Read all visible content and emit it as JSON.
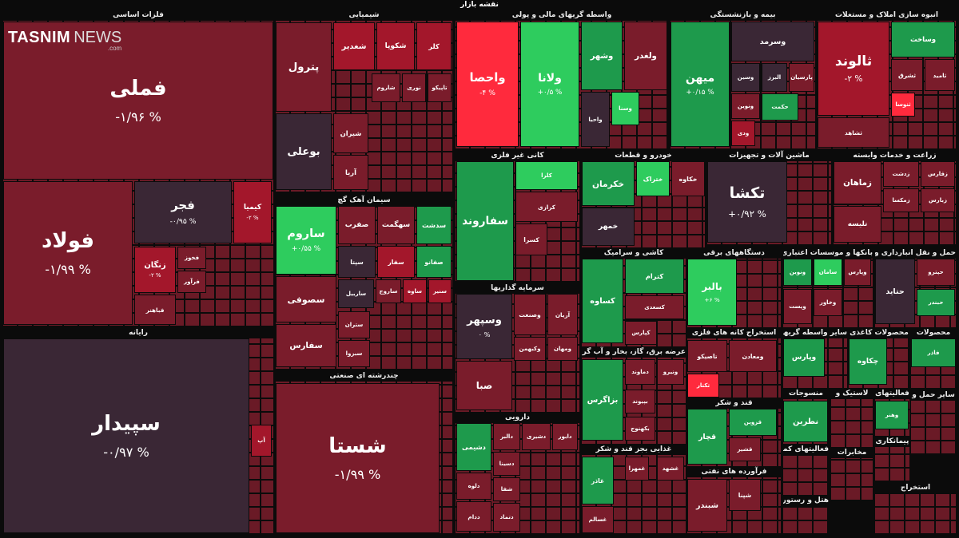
{
  "title": "نقشه بازار",
  "logo": {
    "brand": "TASNIM",
    "suffix": "NEWS",
    "domain": ".com"
  },
  "sectors": [
    {
      "name": "فلزات اساسی",
      "tiles": [
        {
          "label": "فملی",
          "change": "-۱/۹۶ %",
          "color": "#7a1c2b"
        },
        {
          "label": "فولاد",
          "change": "-۱/۹۹ %",
          "color": "#7a1c2b"
        },
        {
          "label": "فجر",
          "change": "-۰/۹۵ %",
          "color": "#3a2735"
        },
        {
          "label": "کیمیا",
          "change": "-۲ %",
          "color": "#a3172b"
        },
        {
          "label": "زنگان",
          "change": "-۲ %",
          "color": "#a3172b"
        },
        {
          "label": "فخوز",
          "color": "#7a1c2b"
        },
        {
          "label": "فرآور",
          "color": "#7a1c2b"
        },
        {
          "label": "فباهنر",
          "color": "#7a1c2b"
        }
      ]
    },
    {
      "name": "رایانه",
      "tiles": [
        {
          "label": "سپیدار",
          "change": "-۰/۹۷ %",
          "color": "#3a2735"
        },
        {
          "label": "آپ",
          "color": "#a3172b"
        }
      ]
    },
    {
      "name": "شیمیایی",
      "tiles": [
        {
          "label": "پترول",
          "color": "#7a1c2b"
        },
        {
          "label": "شغدیر",
          "color": "#a3172b"
        },
        {
          "label": "شکوپا",
          "color": "#a3172b"
        },
        {
          "label": "کلر",
          "color": "#a3172b"
        },
        {
          "label": "شاروم",
          "color": "#7a1c2b"
        },
        {
          "label": "نوری",
          "color": "#7a1c2b"
        },
        {
          "label": "تاپیکو",
          "color": "#7a1c2b"
        },
        {
          "label": "بوعلی",
          "color": "#3a2735"
        },
        {
          "label": "شیران",
          "color": "#7a1c2b"
        },
        {
          "label": "آریا",
          "color": "#7a1c2b"
        }
      ]
    },
    {
      "name": "سیمان آهک گچ",
      "tiles": [
        {
          "label": "ساروم",
          "change": "+۰/۵۵ %",
          "color": "#2ecc5e"
        },
        {
          "label": "صفرب",
          "color": "#7a1c2b"
        },
        {
          "label": "سهگمت",
          "color": "#7a1c2b"
        },
        {
          "label": "سدشت",
          "color": "#1e9a4c"
        },
        {
          "label": "سپتا",
          "color": "#3a2735"
        },
        {
          "label": "سفار",
          "color": "#a3172b"
        },
        {
          "label": "صفانو",
          "color": "#1e9a4c"
        },
        {
          "label": "سصوفی",
          "color": "#7a1c2b"
        },
        {
          "label": "سفارس",
          "color": "#7a1c2b"
        },
        {
          "label": "ساربیل",
          "color": "#3a2735"
        },
        {
          "label": "ساروج",
          "color": "#7a1c2b"
        },
        {
          "label": "ساوه",
          "color": "#a3172b"
        },
        {
          "label": "سنیر",
          "color": "#a3172b"
        },
        {
          "label": "ستران",
          "color": "#7a1c2b"
        },
        {
          "label": "سبزوا",
          "color": "#7a1c2b"
        }
      ]
    },
    {
      "name": "چندرشته ای صنعتی",
      "tiles": [
        {
          "label": "شستا",
          "change": "-۱/۹۹ %",
          "color": "#7a1c2b"
        }
      ]
    },
    {
      "name": "واسطه گریهای مالی و پولی",
      "tiles": [
        {
          "label": "واحصا",
          "change": "-۴ %",
          "color": "#ff2a3d"
        },
        {
          "label": "ولانا",
          "change": "+۰/۵ %",
          "color": "#2ecc5e"
        },
        {
          "label": "وشهر",
          "color": "#1e9a4c"
        },
        {
          "label": "ولغدر",
          "color": "#7a1c2b"
        },
        {
          "label": "واحیا",
          "color": "#3a2735"
        },
        {
          "label": "وسنا",
          "color": "#2ecc5e"
        }
      ]
    },
    {
      "name": "بیمه و بازنشستگی",
      "tiles": [
        {
          "label": "میهن",
          "change": "+۰/۱۵ %",
          "color": "#1e9a4c"
        },
        {
          "label": "وسرمد",
          "color": "#3a2735"
        },
        {
          "label": "وسین",
          "color": "#3a2735"
        },
        {
          "label": "البرز",
          "color": "#3a2735"
        },
        {
          "label": "پارسیان",
          "color": "#7a1c2b"
        },
        {
          "label": "ونوین",
          "color": "#7a1c2b"
        },
        {
          "label": "حکمت",
          "color": "#1e9a4c"
        },
        {
          "label": "ودی",
          "color": "#a3172b"
        }
      ]
    },
    {
      "name": "انبوه سازی املاک و مستغلات",
      "tiles": [
        {
          "label": "ثالوند",
          "change": "-۲ %",
          "color": "#a3172b"
        },
        {
          "label": "وساخت",
          "color": "#1e9a4c"
        },
        {
          "label": "ثشرق",
          "color": "#7a1c2b"
        },
        {
          "label": "ثامید",
          "color": "#7a1c2b"
        },
        {
          "label": "ثنوسا",
          "color": "#ff2a3d"
        },
        {
          "label": "ثشاهد",
          "color": "#7a1c2b"
        }
      ]
    },
    {
      "name": "کانی غیر فلزی",
      "tiles": [
        {
          "label": "سفاروند",
          "color": "#1e9a4c"
        },
        {
          "label": "کلرا",
          "color": "#2ecc5e"
        },
        {
          "label": "کرازی",
          "color": "#7a1c2b"
        },
        {
          "label": "کسرا",
          "color": "#7a1c2b"
        }
      ]
    },
    {
      "name": "خودرو و قطعات",
      "tiles": [
        {
          "label": "خکرمان",
          "color": "#1e9a4c"
        },
        {
          "label": "ختراک",
          "color": "#2ecc5e"
        },
        {
          "label": "خکاوه",
          "color": "#7a1c2b"
        },
        {
          "label": "خمهر",
          "color": "#3a2735"
        }
      ]
    },
    {
      "name": "ماشین آلات و تجهیزات",
      "tiles": [
        {
          "label": "تکشا",
          "change": "+۰/۹۲ %",
          "color": "#3a2735"
        }
      ]
    },
    {
      "name": "زراعت و خدمات وابسته",
      "tiles": [
        {
          "label": "زماهان",
          "color": "#7a1c2b"
        },
        {
          "label": "زدشت",
          "color": "#7a1c2b"
        },
        {
          "label": "زقارس",
          "color": "#7a1c2b"
        },
        {
          "label": "زمکسا",
          "color": "#7a1c2b"
        },
        {
          "label": "زبارس",
          "color": "#7a1c2b"
        },
        {
          "label": "تلیسه",
          "color": "#7a1c2b"
        }
      ]
    },
    {
      "name": "کاشی و سرامیک",
      "tiles": [
        {
          "label": "کساوه",
          "color": "#1e9a4c"
        },
        {
          "label": "کترام",
          "color": "#1e9a4c"
        },
        {
          "label": "کسعدی",
          "color": "#7a1c2b"
        },
        {
          "label": "کپارس",
          "color": "#7a1c2b"
        }
      ]
    },
    {
      "name": "دستگاههای برقی",
      "tiles": [
        {
          "label": "بالبر",
          "change": "+۶ %",
          "color": "#2ecc5e"
        }
      ]
    },
    {
      "name": "بانکها و موسسات اعتباری",
      "tiles": [
        {
          "label": "ونوین",
          "color": "#1e9a4c"
        },
        {
          "label": "سامان",
          "color": "#2ecc5e"
        },
        {
          "label": "وپارس",
          "color": "#7a1c2b"
        },
        {
          "label": "وپست",
          "color": "#7a1c2b"
        },
        {
          "label": "وخاور",
          "color": "#7a1c2b"
        }
      ]
    },
    {
      "name": "حمل و نقل انبارداری و ارتباطات",
      "tiles": [
        {
          "label": "حتاید",
          "color": "#3a2735"
        },
        {
          "label": "حپترو",
          "color": "#7a1c2b"
        },
        {
          "label": "حبندر",
          "color": "#1e9a4c"
        }
      ]
    },
    {
      "name": "سرمایه گذاریها",
      "tiles": [
        {
          "label": "وسپهر",
          "change": "۰ %",
          "color": "#3a2735"
        },
        {
          "label": "وصنعت",
          "color": "#7a1c2b"
        },
        {
          "label": "آریان",
          "color": "#7a1c2b"
        },
        {
          "label": "وکبهمن",
          "color": "#7a1c2b"
        },
        {
          "label": "ومهان",
          "color": "#7a1c2b"
        },
        {
          "label": "صبا",
          "color": "#7a1c2b"
        }
      ]
    },
    {
      "name": "عرضه برق، گاز، بخار و آب گرم",
      "tiles": [
        {
          "label": "بزاگرس",
          "color": "#1e9a4c"
        },
        {
          "label": "دماوند",
          "color": "#7a1c2b"
        },
        {
          "label": "ونیرو",
          "color": "#7a1c2b"
        },
        {
          "label": "بپیوند",
          "color": "#7a1c2b"
        },
        {
          "label": "بکهنوج",
          "color": "#7a1c2b"
        }
      ]
    },
    {
      "name": "استخراج کانه های فلزی",
      "tiles": [
        {
          "label": "تاصیکو",
          "color": "#7a1c2b"
        },
        {
          "label": "ومعادن",
          "color": "#7a1c2b"
        },
        {
          "label": "تکنار",
          "color": "#ff2a3d"
        }
      ]
    },
    {
      "name": "سایر واسطه گریهای مالی",
      "tiles": [
        {
          "label": "وپارس",
          "color": "#1e9a4c"
        }
      ]
    },
    {
      "name": "محصولات کاغذی",
      "tiles": [
        {
          "label": "چکاوه",
          "color": "#1e9a4c"
        }
      ]
    },
    {
      "name": "محصولات",
      "tiles": [
        {
          "label": "فاذر",
          "color": "#1e9a4c"
        }
      ]
    },
    {
      "name": "قند و شکر",
      "tiles": [
        {
          "label": "قچار",
          "color": "#1e9a4c"
        },
        {
          "label": "قزوین",
          "color": "#1e9a4c"
        },
        {
          "label": "قشیر",
          "color": "#7a1c2b"
        }
      ]
    },
    {
      "name": "منسوجات",
      "tiles": [
        {
          "label": "نطرین",
          "color": "#1e9a4c"
        }
      ]
    },
    {
      "name": "لاستیک و",
      "tiles": []
    },
    {
      "name": "فعالیتهای",
      "tiles": [
        {
          "label": "وهنر",
          "color": "#1e9a4c"
        }
      ]
    },
    {
      "name": "غذایی بجز قند و شکر",
      "tiles": [
        {
          "label": "غاذر",
          "color": "#1e9a4c"
        },
        {
          "label": "غمهرا",
          "color": "#7a1c2b"
        },
        {
          "label": "غشهد",
          "color": "#7a1c2b"
        },
        {
          "label": "غسالم",
          "color": "#7a1c2b"
        }
      ]
    },
    {
      "name": "فرآورده های نفتی",
      "tiles": [
        {
          "label": "شبندر",
          "color": "#7a1c2b"
        },
        {
          "label": "شپنا",
          "color": "#7a1c2b"
        }
      ]
    },
    {
      "name": "دارویی",
      "tiles": [
        {
          "label": "دشیمی",
          "color": "#1e9a4c"
        },
        {
          "label": "دالبر",
          "color": "#7a1c2b"
        },
        {
          "label": "دشیری",
          "color": "#7a1c2b"
        },
        {
          "label": "دابور",
          "color": "#7a1c2b"
        },
        {
          "label": "دسینا",
          "color": "#7a1c2b"
        },
        {
          "label": "دلوه",
          "color": "#7a1c2b"
        },
        {
          "label": "شفا",
          "color": "#7a1c2b"
        },
        {
          "label": "ددام",
          "color": "#7a1c2b"
        },
        {
          "label": "دتماد",
          "color": "#7a1c2b"
        }
      ]
    },
    {
      "name": "فعالیتهای کمکی",
      "tiles": []
    },
    {
      "name": "مخابرات",
      "tiles": []
    },
    {
      "name": "پیمانکاری",
      "tiles": []
    },
    {
      "name": "سایر حمل و",
      "tiles": []
    },
    {
      "name": "هتل و رستوران",
      "tiles": []
    },
    {
      "name": "استخراج",
      "tiles": []
    }
  ]
}
